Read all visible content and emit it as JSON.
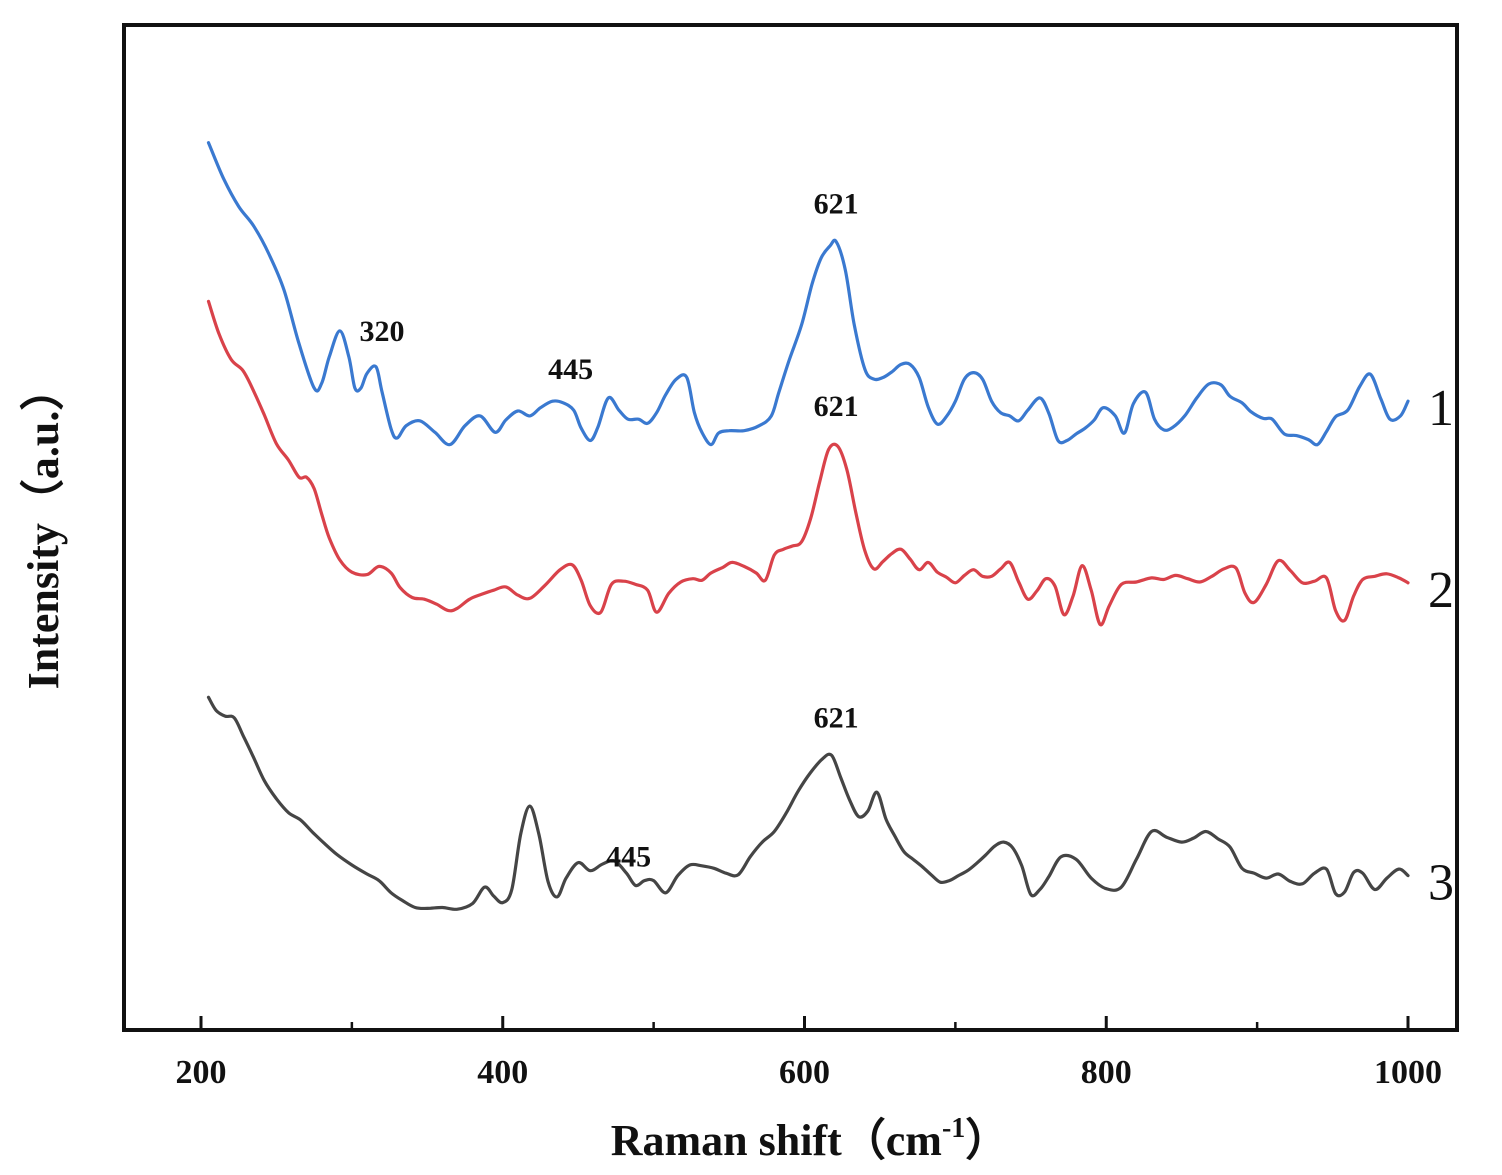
{
  "chart_data": {
    "type": "line",
    "title": "",
    "xlabel": "Raman shift（cm",
    "xlabel_sup": "-1",
    "xlabel_close": "）",
    "ylabel": "Intensity（a.u.）",
    "xlim": [
      150,
      1050
    ],
    "ylim": [
      0,
      100
    ],
    "xticks": [
      200,
      400,
      600,
      800,
      1000
    ],
    "yticks": [],
    "grid": false,
    "legend": "none",
    "series": [
      {
        "name": "1",
        "color": "#3a79d0",
        "x": [
          205,
          215,
          225,
          235,
          245,
          255,
          265,
          275,
          280,
          285,
          292,
          298,
          302,
          306,
          310,
          316,
          320,
          326,
          330,
          336,
          345,
          355,
          365,
          375,
          385,
          395,
          402,
          410,
          418,
          425,
          433,
          440,
          447,
          452,
          458,
          463,
          470,
          477,
          483,
          490,
          496,
          502,
          508,
          515,
          522,
          527,
          532,
          538,
          543,
          550,
          560,
          570,
          578,
          583,
          590,
          598,
          605,
          611,
          617,
          621,
          627,
          633,
          640,
          646,
          652,
          658,
          664,
          670,
          676,
          682,
          688,
          694,
          700,
          706,
          712,
          718,
          724,
          730,
          736,
          742,
          748,
          756,
          762,
          768,
          774,
          780,
          786,
          792,
          798,
          806,
          812,
          818,
          826,
          832,
          838,
          844,
          852,
          860,
          868,
          876,
          882,
          890,
          896,
          904,
          910,
          918,
          926,
          934,
          940,
          946,
          952,
          960,
          968,
          975,
          982,
          988,
          995,
          1000
        ],
        "y": [
          93.8,
          89.4,
          86.0,
          83.6,
          80.2,
          75.8,
          69.2,
          63.8,
          64.4,
          67.6,
          70.8,
          67.6,
          63.8,
          63.8,
          65.6,
          66.4,
          63.3,
          58.8,
          57.7,
          59.2,
          59.8,
          58.4,
          56.9,
          59.2,
          60.4,
          58.4,
          59.9,
          61.0,
          60.4,
          61.4,
          62.2,
          62.0,
          61.1,
          58.9,
          57.4,
          59.0,
          62.6,
          61.1,
          60.0,
          60.0,
          59.5,
          60.8,
          63.0,
          64.9,
          65.1,
          60.8,
          58.4,
          56.9,
          58.3,
          58.6,
          58.6,
          59.2,
          60.4,
          63.3,
          67.3,
          71.5,
          76.5,
          79.7,
          81.2,
          81.7,
          78.3,
          71.5,
          66.1,
          64.9,
          65.1,
          65.8,
          66.7,
          66.7,
          65.1,
          61.5,
          59.4,
          60.3,
          62.2,
          64.9,
          65.7,
          64.9,
          62.2,
          60.8,
          60.4,
          59.8,
          61.1,
          62.6,
          60.7,
          57.4,
          57.4,
          58.2,
          58.9,
          59.9,
          61.4,
          60.4,
          58.3,
          61.9,
          63.3,
          60.0,
          58.7,
          59.0,
          60.4,
          62.6,
          64.3,
          64.2,
          62.8,
          62.0,
          60.9,
          60.1,
          60.0,
          58.2,
          58.0,
          57.5,
          56.9,
          58.5,
          60.3,
          61.1,
          64.0,
          65.5,
          62.5,
          60.0,
          60.4,
          62.2
        ]
      },
      {
        "name": "2",
        "color": "#d9424a",
        "x": [
          205,
          212,
          220,
          228,
          235,
          242,
          250,
          258,
          265,
          270,
          275,
          280,
          285,
          292,
          300,
          310,
          318,
          326,
          332,
          340,
          348,
          356,
          364,
          370,
          378,
          386,
          394,
          402,
          410,
          418,
          428,
          438,
          446,
          452,
          458,
          465,
          472,
          480,
          488,
          496,
          502,
          510,
          518,
          526,
          532,
          538,
          546,
          552,
          560,
          568,
          574,
          580,
          586,
          592,
          598,
          604,
          610,
          616,
          622,
          628,
          634,
          640,
          646,
          652,
          658,
          664,
          670,
          676,
          682,
          688,
          694,
          700,
          706,
          712,
          718,
          724,
          730,
          736,
          742,
          748,
          754,
          760,
          766,
          772,
          778,
          784,
          790,
          796,
          802,
          810,
          820,
          830,
          838,
          846,
          854,
          862,
          870,
          878,
          886,
          892,
          898,
          906,
          914,
          922,
          930,
          938,
          946,
          952,
          958,
          964,
          970,
          978,
          986,
          994,
          1000
        ],
        "y": [
          74.4,
          70.4,
          67.3,
          65.9,
          63.4,
          60.5,
          57.0,
          55.0,
          52.9,
          52.9,
          51.5,
          48.4,
          45.5,
          42.8,
          41.3,
          41.0,
          42.0,
          41.2,
          39.4,
          38.2,
          38.0,
          37.4,
          36.6,
          36.9,
          38.0,
          38.6,
          39.1,
          39.5,
          38.5,
          38.1,
          39.7,
          41.6,
          42.2,
          40.3,
          37.2,
          36.4,
          39.8,
          40.2,
          39.8,
          39.1,
          36.4,
          38.7,
          40.1,
          40.5,
          40.3,
          41.2,
          41.9,
          42.5,
          42.0,
          41.2,
          40.3,
          43.4,
          44.1,
          44.5,
          45.0,
          47.8,
          52.3,
          56.3,
          56.7,
          53.9,
          48.6,
          43.9,
          41.7,
          42.6,
          43.6,
          44.1,
          42.9,
          41.6,
          42.5,
          41.3,
          40.7,
          40.0,
          40.9,
          41.6,
          40.8,
          40.8,
          41.7,
          42.5,
          40.1,
          38.0,
          39.0,
          40.5,
          39.6,
          36.1,
          38.4,
          42.1,
          39.1,
          34.9,
          37.2,
          39.8,
          40.1,
          40.6,
          40.4,
          40.9,
          40.5,
          40.1,
          40.8,
          41.7,
          41.8,
          38.7,
          37.6,
          39.8,
          42.7,
          41.5,
          40.0,
          40.2,
          40.6,
          36.6,
          35.4,
          38.4,
          40.4,
          40.8,
          41.1,
          40.6,
          40.0
        ]
      },
      {
        "name": "3",
        "color": "#454545",
        "x": [
          205,
          210,
          216,
          222,
          228,
          235,
          242,
          250,
          258,
          266,
          274,
          282,
          290,
          300,
          310,
          318,
          326,
          334,
          342,
          350,
          360,
          370,
          380,
          388,
          394,
          400,
          406,
          412,
          418,
          424,
          430,
          436,
          442,
          450,
          458,
          466,
          474,
          482,
          488,
          494,
          500,
          508,
          516,
          524,
          532,
          540,
          548,
          556,
          564,
          572,
          580,
          588,
          596,
          604,
          612,
          618,
          624,
          630,
          636,
          642,
          648,
          654,
          660,
          666,
          672,
          678,
          684,
          690,
          696,
          702,
          708,
          714,
          720,
          726,
          732,
          738,
          744,
          750,
          756,
          762,
          770,
          780,
          790,
          800,
          810,
          820,
          830,
          840,
          850,
          858,
          866,
          874,
          882,
          890,
          898,
          906,
          914,
          922,
          930,
          938,
          946,
          952,
          958,
          964,
          970,
          978,
          986,
          994,
          1000
        ],
        "y": [
          26.0,
          24.4,
          23.7,
          23.5,
          21.3,
          18.6,
          15.8,
          13.6,
          11.9,
          11.0,
          9.5,
          8.1,
          6.8,
          5.5,
          4.4,
          3.6,
          2.1,
          1.1,
          0.3,
          0.2,
          0.3,
          0.1,
          0.8,
          2.8,
          1.7,
          0.9,
          2.5,
          9.4,
          12.7,
          9.2,
          3.5,
          1.6,
          3.9,
          5.8,
          4.8,
          5.6,
          6.0,
          4.5,
          3.0,
          3.6,
          3.6,
          2.1,
          4.2,
          5.5,
          5.4,
          5.1,
          4.5,
          4.3,
          6.5,
          8.3,
          9.6,
          11.9,
          14.6,
          16.8,
          18.5,
          18.9,
          16.2,
          13.4,
          11.4,
          12.1,
          14.4,
          11.1,
          9.0,
          7.1,
          6.2,
          5.3,
          4.3,
          3.4,
          3.6,
          4.2,
          4.8,
          5.7,
          6.7,
          7.8,
          8.3,
          7.6,
          5.4,
          1.9,
          2.5,
          4.1,
          6.5,
          6.2,
          3.9,
          2.6,
          2.8,
          6.2,
          9.6,
          8.9,
          8.3,
          8.8,
          9.6,
          8.7,
          7.7,
          5.1,
          4.5,
          3.9,
          4.4,
          3.5,
          3.2,
          4.5,
          5.0,
          2.0,
          2.2,
          4.6,
          4.5,
          2.5,
          3.9,
          5.0,
          4.2
        ]
      }
    ],
    "annotations": [
      {
        "series": "1",
        "text": "621",
        "x": 621
      },
      {
        "series": "1",
        "text": "320",
        "x": 320
      },
      {
        "series": "1",
        "text": "445",
        "x": 445
      },
      {
        "series": "2",
        "text": "621",
        "x": 621
      },
      {
        "series": "3",
        "text": "621",
        "x": 621
      },
      {
        "series": "3",
        "text": "445",
        "x": 445
      }
    ]
  }
}
